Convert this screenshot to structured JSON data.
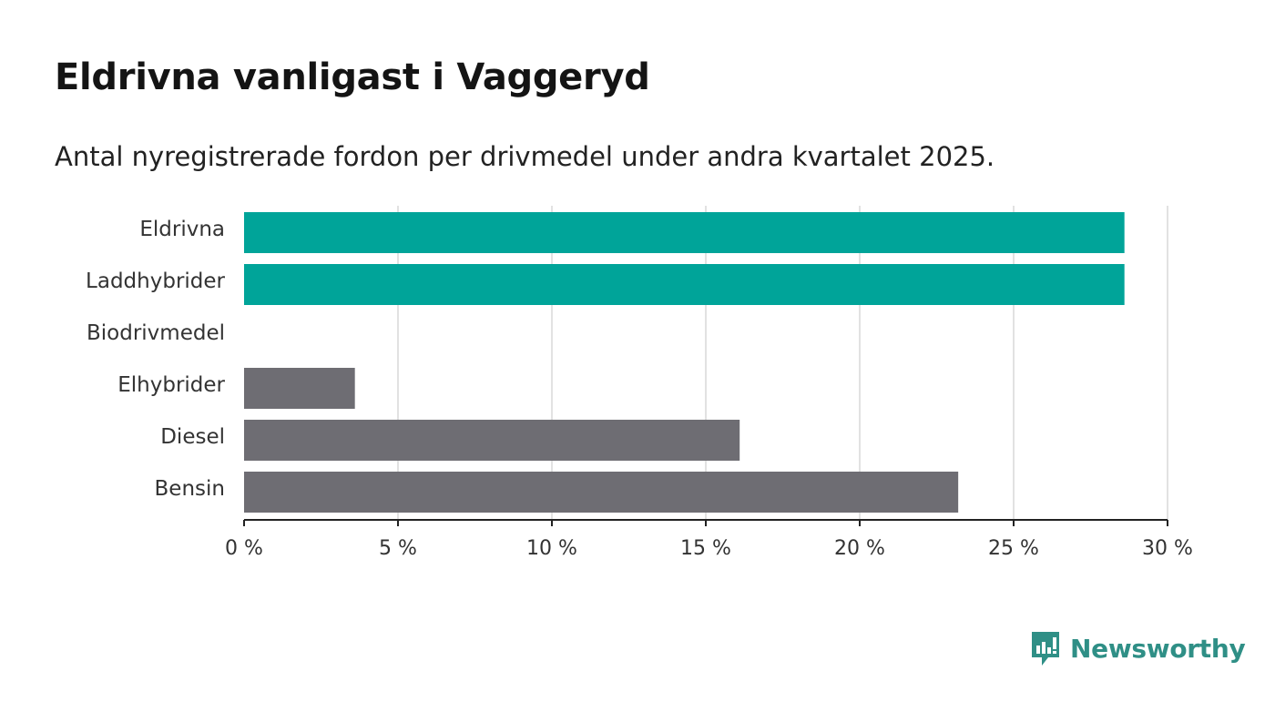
{
  "header": {
    "title": "Eldrivna vanligast i Vaggeryd",
    "subtitle": "Antal nyregistrerade fordon per drivmedel under andra kvartalet 2025."
  },
  "chart_data": {
    "type": "bar",
    "orientation": "horizontal",
    "categories": [
      "Eldrivna",
      "Laddhybrider",
      "Biodrivmedel",
      "Elhybrider",
      "Diesel",
      "Bensin"
    ],
    "values": [
      28.6,
      28.6,
      0,
      3.6,
      16.1,
      23.2
    ],
    "highlight": [
      true,
      true,
      false,
      false,
      false,
      false
    ],
    "xlim": [
      0,
      30
    ],
    "xticks": [
      0,
      5,
      10,
      15,
      20,
      25,
      30
    ],
    "xtick_labels": [
      "0 %",
      "5 %",
      "10 %",
      "15 %",
      "20 %",
      "25 %",
      "30 %"
    ],
    "grid": true,
    "colors": {
      "highlight": "#00a499",
      "default": "#6e6d73",
      "grid": "#d9d9d9",
      "axis": "#222222"
    }
  },
  "brand": {
    "name": "Newsworthy",
    "icon": "newsworthy-logo-icon",
    "color": "#2f8f86"
  }
}
